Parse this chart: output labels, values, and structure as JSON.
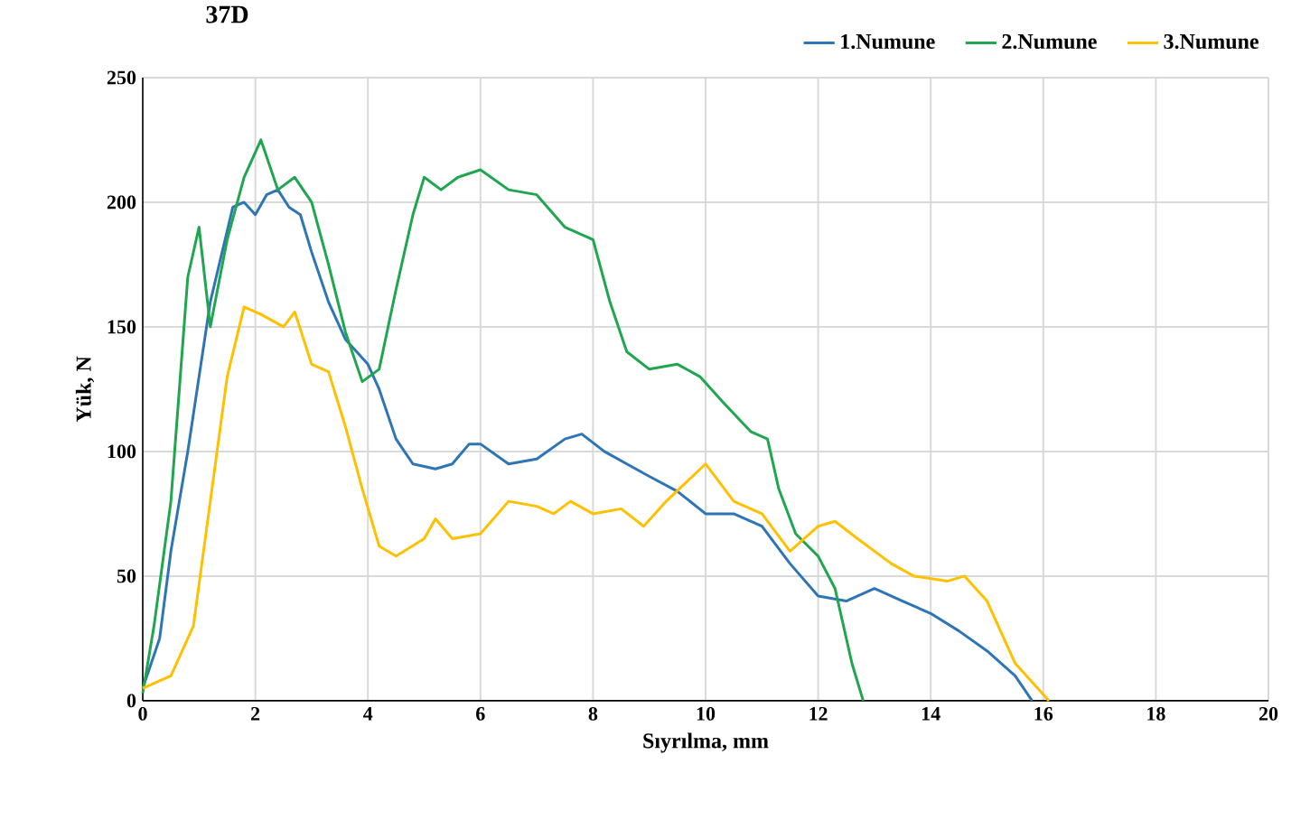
{
  "chart_data": {
    "type": "line",
    "title": "37D",
    "xlabel": "Sıyrılma, mm",
    "ylabel": "Yük, N",
    "xlim": [
      0,
      20
    ],
    "xticks": [
      0,
      2,
      4,
      6,
      8,
      10,
      12,
      14,
      16,
      18,
      20
    ],
    "ylim": [
      0,
      250
    ],
    "yticks": [
      0,
      50,
      100,
      150,
      200,
      250
    ],
    "grid": true,
    "legend": "top right",
    "line_style": "solid",
    "series": [
      {
        "name": "1.Numune",
        "color": "#2e75b6",
        "x": [
          0,
          0.3,
          0.5,
          0.8,
          1.2,
          1.6,
          1.8,
          2.0,
          2.2,
          2.4,
          2.6,
          2.8,
          3.0,
          3.3,
          3.6,
          4.0,
          4.2,
          4.5,
          4.8,
          5.2,
          5.5,
          5.8,
          6.0,
          6.5,
          7.0,
          7.5,
          7.8,
          8.2,
          8.6,
          9.0,
          9.5,
          10.0,
          10.5,
          11.0,
          11.5,
          12.0,
          12.5,
          13.0,
          13.5,
          14.0,
          14.5,
          15.0,
          15.5,
          15.8
        ],
        "values": [
          5,
          25,
          60,
          100,
          160,
          198,
          200,
          195,
          203,
          205,
          198,
          195,
          180,
          160,
          145,
          135,
          125,
          105,
          95,
          93,
          95,
          103,
          103,
          95,
          97,
          105,
          107,
          100,
          95,
          90,
          84,
          75,
          75,
          70,
          55,
          42,
          40,
          45,
          40,
          35,
          28,
          20,
          10,
          0
        ]
      },
      {
        "name": "2.Numune",
        "color": "#1fa64f",
        "x": [
          0,
          0.2,
          0.5,
          0.8,
          1.0,
          1.2,
          1.5,
          1.8,
          2.1,
          2.4,
          2.7,
          3.0,
          3.3,
          3.6,
          3.9,
          4.2,
          4.5,
          4.8,
          5.0,
          5.3,
          5.6,
          6.0,
          6.5,
          7.0,
          7.5,
          8.0,
          8.3,
          8.6,
          9.0,
          9.5,
          9.9,
          10.3,
          10.8,
          11.1,
          11.3,
          11.6,
          12.0,
          12.3,
          12.6,
          12.8
        ],
        "values": [
          3,
          30,
          80,
          170,
          190,
          150,
          185,
          210,
          225,
          205,
          210,
          200,
          175,
          148,
          128,
          133,
          165,
          195,
          210,
          205,
          210,
          213,
          205,
          203,
          190,
          185,
          160,
          140,
          133,
          135,
          130,
          120,
          108,
          105,
          85,
          67,
          58,
          45,
          15,
          0
        ]
      },
      {
        "name": "3.Numune",
        "color": "#ffc000",
        "x": [
          0,
          0.5,
          0.9,
          1.2,
          1.5,
          1.8,
          2.1,
          2.5,
          2.7,
          3.0,
          3.3,
          3.6,
          3.9,
          4.2,
          4.5,
          5.0,
          5.2,
          5.5,
          6.0,
          6.5,
          7.0,
          7.3,
          7.6,
          8.0,
          8.5,
          8.9,
          9.3,
          10.0,
          10.5,
          11.0,
          11.5,
          12.0,
          12.3,
          12.7,
          13.3,
          13.7,
          14.3,
          14.6,
          15.0,
          15.5,
          16.1
        ],
        "values": [
          5,
          10,
          30,
          80,
          130,
          158,
          155,
          150,
          156,
          135,
          132,
          110,
          85,
          62,
          58,
          65,
          73,
          65,
          67,
          80,
          78,
          75,
          80,
          75,
          77,
          70,
          80,
          95,
          80,
          75,
          60,
          70,
          72,
          65,
          55,
          50,
          48,
          50,
          40,
          15,
          0
        ]
      }
    ]
  }
}
